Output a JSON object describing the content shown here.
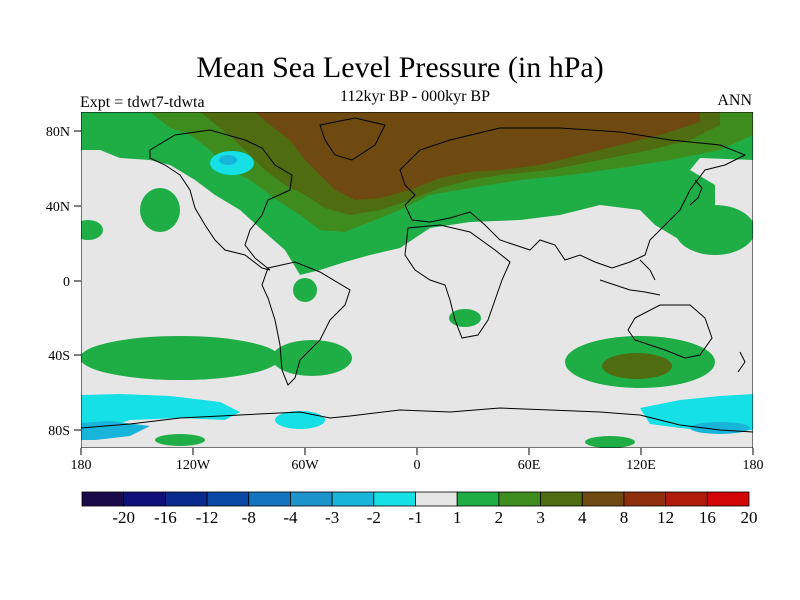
{
  "title": "Mean Sea Level Pressure (in hPa)",
  "subtitle": "112kyr BP - 000kyr BP",
  "experiment": "Expt = tdwt7-tdwta",
  "season": "ANN",
  "axes": {
    "lon_labels": [
      "180",
      "120W",
      "60W",
      "0",
      "60E",
      "120E",
      "180"
    ],
    "lat_labels": [
      "80N",
      "40N",
      "0",
      "40S",
      "80S"
    ]
  },
  "colorbar": {
    "labels": [
      "-20",
      "-16",
      "-12",
      "-8",
      "-4",
      "-3",
      "-2",
      "-1",
      "1",
      "2",
      "3",
      "4",
      "8",
      "12",
      "16",
      "20"
    ],
    "colors": [
      "#1b0a4a",
      "#10107a",
      "#0a2a8e",
      "#0a49a6",
      "#1474bf",
      "#1e94cc",
      "#19b4d9",
      "#14e0e6",
      "#e6e6e6",
      "#1fae46",
      "#3e8c1e",
      "#4f6c10",
      "#6e4a10",
      "#8e2e0c",
      "#b01a08",
      "#d20606"
    ]
  },
  "colors": {
    "neutral": "#e6e6e6",
    "green": "#1fae46",
    "darkgreen": "#3e8c1e",
    "olive": "#4f6c10",
    "brown": "#6e4a10",
    "cyan": "#14e0e6",
    "lightblue": "#19b4d9"
  }
}
